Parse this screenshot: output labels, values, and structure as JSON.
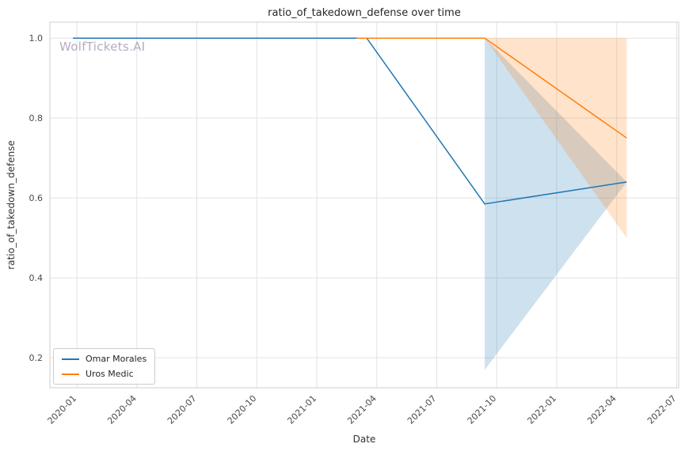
{
  "watermark": "WolfTickets.AI",
  "watermark_color": "#b5abc0",
  "chart_data": {
    "type": "line",
    "title": "ratio_of_takedown_defense over time",
    "xlabel": "Date",
    "ylabel": "ratio_of_takedown_defense",
    "grid": true,
    "legend_position": "lower left",
    "x_unit": "months since 2020-01",
    "x_axis": {
      "min": -1.35,
      "max": 30.1,
      "ticks": [
        {
          "x": 0,
          "label": "2020-01"
        },
        {
          "x": 3,
          "label": "2020-04"
        },
        {
          "x": 6,
          "label": "2020-07"
        },
        {
          "x": 9,
          "label": "2020-10"
        },
        {
          "x": 12,
          "label": "2021-01"
        },
        {
          "x": 15,
          "label": "2021-04"
        },
        {
          "x": 18,
          "label": "2021-07"
        },
        {
          "x": 21,
          "label": "2021-10"
        },
        {
          "x": 24,
          "label": "2022-01"
        },
        {
          "x": 27,
          "label": "2022-04"
        },
        {
          "x": 30,
          "label": "2022-07"
        }
      ]
    },
    "y_axis": {
      "min": 0.125,
      "max": 1.04,
      "ticks": [
        {
          "y": 0.2,
          "label": "0.2"
        },
        {
          "y": 0.4,
          "label": "0.4"
        },
        {
          "y": 0.6,
          "label": "0.6"
        },
        {
          "y": 0.8,
          "label": "0.8"
        },
        {
          "y": 1.0,
          "label": "1.0"
        }
      ]
    },
    "series": [
      {
        "name": "Omar Morales",
        "color": "#1f77b4",
        "points": [
          [
            -0.2,
            1.0
          ],
          [
            14.5,
            1.0
          ],
          [
            20.4,
            0.585
          ],
          [
            27.5,
            0.64
          ]
        ],
        "band": {
          "opacity": 0.22,
          "upper": [
            [
              20.4,
              1.0
            ],
            [
              27.5,
              0.64
            ]
          ],
          "lower": [
            [
              20.4,
              0.17
            ],
            [
              27.5,
              0.64
            ]
          ]
        }
      },
      {
        "name": "Uros Medic",
        "color": "#ff7f0e",
        "points": [
          [
            14.0,
            1.0
          ],
          [
            20.4,
            1.0
          ],
          [
            27.5,
            0.75
          ]
        ],
        "band": {
          "opacity": 0.22,
          "upper": [
            [
              20.4,
              1.0
            ],
            [
              27.5,
              1.0
            ]
          ],
          "lower": [
            [
              20.4,
              1.0
            ],
            [
              27.5,
              0.5
            ]
          ]
        }
      }
    ]
  }
}
